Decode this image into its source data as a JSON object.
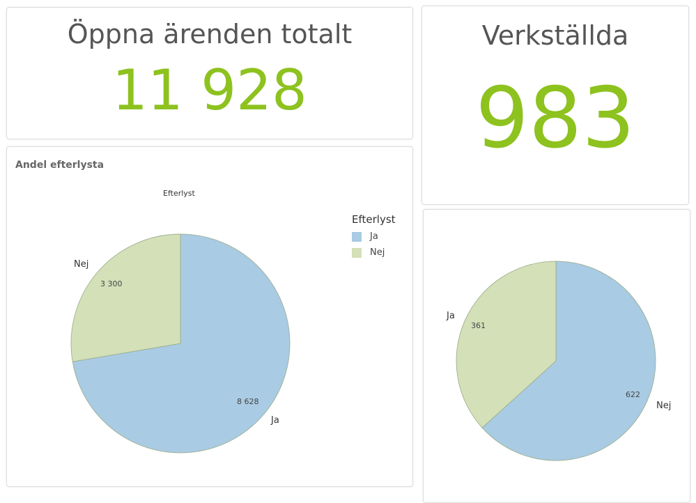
{
  "kpi_open": {
    "title": "Öppna ärenden totalt",
    "value": "11 928"
  },
  "kpi_executed": {
    "title": "Verkställda",
    "value": "983"
  },
  "colors": {
    "blue": "#a9cbe3",
    "green": "#d3e0b8",
    "accent": "#8dc21f"
  },
  "chart_data": [
    {
      "type": "pie",
      "card_title": "Andel efterlysta",
      "title": "Efterlyst",
      "legend_title": "Efterlyst",
      "legend_position": "right",
      "categories": [
        "Ja",
        "Nej"
      ],
      "values": [
        8628,
        3300
      ],
      "value_labels": [
        "8 628",
        "3 300"
      ],
      "slice_colors": [
        "#a9cbe3",
        "#d3e0b8"
      ]
    },
    {
      "type": "pie",
      "categories": [
        "Nej",
        "Ja"
      ],
      "values": [
        622,
        361
      ],
      "value_labels": [
        "622",
        "361"
      ],
      "slice_colors": [
        "#a9cbe3",
        "#d3e0b8"
      ]
    }
  ]
}
